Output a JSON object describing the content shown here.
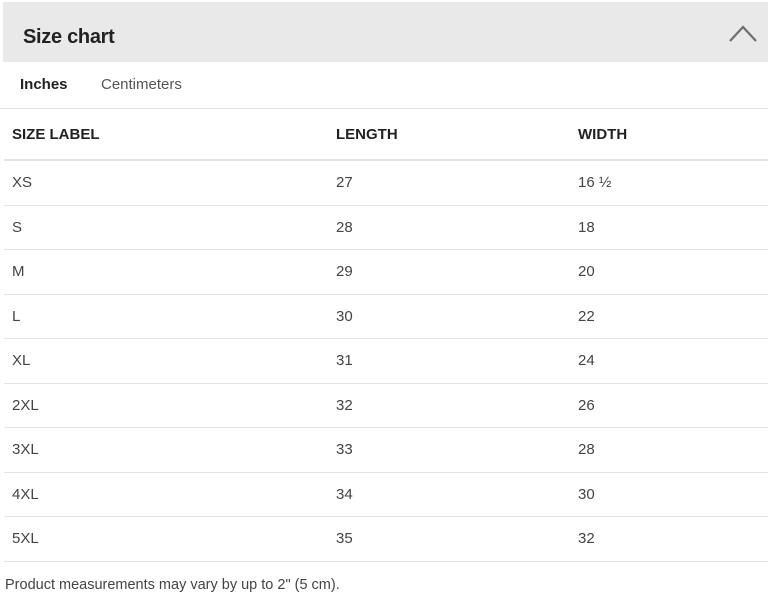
{
  "header": {
    "title": "Size chart",
    "collapse_icon": "chevron-up-icon"
  },
  "tabs": [
    {
      "label": "Inches",
      "active": true
    },
    {
      "label": "Centimeters",
      "active": false
    }
  ],
  "table": {
    "columns": [
      "SIZE LABEL",
      "LENGTH",
      "WIDTH"
    ],
    "rows": [
      [
        "XS",
        "27",
        "16 ½"
      ],
      [
        "S",
        "28",
        "18"
      ],
      [
        "M",
        "29",
        "20"
      ],
      [
        "L",
        "30",
        "22"
      ],
      [
        "XL",
        "31",
        "24"
      ],
      [
        "2XL",
        "32",
        "26"
      ],
      [
        "3XL",
        "33",
        "28"
      ],
      [
        "4XL",
        "34",
        "30"
      ],
      [
        "5XL",
        "35",
        "32"
      ]
    ]
  },
  "footer": {
    "note": "Product measurements may vary by up to 2\" (5 cm)."
  }
}
